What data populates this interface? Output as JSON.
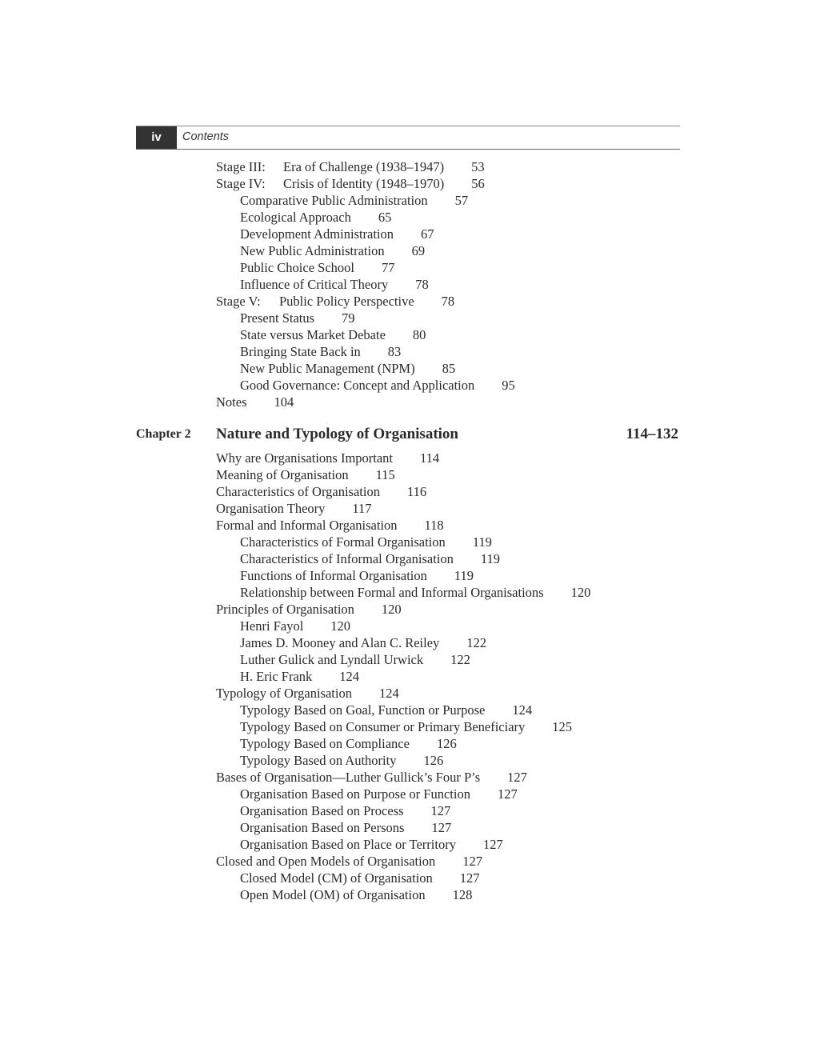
{
  "header": {
    "page_number": "iv",
    "title": "Contents"
  },
  "section1": [
    {
      "label": "Stage III:",
      "text": "Era of Challenge (1938–1947)",
      "page": "53",
      "level": 0
    },
    {
      "label": "Stage IV:",
      "text": "Crisis of Identity (1948–1970)",
      "page": "56",
      "level": 0
    },
    {
      "text": "Comparative Public Administration",
      "page": "57",
      "level": 1
    },
    {
      "text": "Ecological Approach",
      "page": "65",
      "level": 1
    },
    {
      "text": "Development Administration",
      "page": "67",
      "level": 1
    },
    {
      "text": "New Public Administration",
      "page": "69",
      "level": 1
    },
    {
      "text": "Public Choice School",
      "page": "77",
      "level": 1
    },
    {
      "text": "Influence of Critical Theory",
      "page": "78",
      "level": 1
    },
    {
      "label": "Stage V:",
      "text": "Public Policy Perspective",
      "page": "78",
      "level": 0
    },
    {
      "text": "Present Status",
      "page": "79",
      "level": 1
    },
    {
      "text": "State versus Market Debate",
      "page": "80",
      "level": 1
    },
    {
      "text": "Bringing State Back in",
      "page": "83",
      "level": 1
    },
    {
      "text": "New Public Management (NPM)",
      "page": "85",
      "level": 1
    },
    {
      "text": "Good Governance: Concept and Application",
      "page": "95",
      "level": 1
    },
    {
      "text": "Notes",
      "page": "104",
      "level": 0
    }
  ],
  "chapter": {
    "label": "Chapter 2",
    "title": "Nature and Typology of Organisation",
    "pages": "114–132"
  },
  "section2": [
    {
      "text": "Why are Organisations Important",
      "page": "114",
      "level": 0
    },
    {
      "text": "Meaning of Organisation",
      "page": "115",
      "level": 0
    },
    {
      "text": "Characteristics of Organisation",
      "page": "116",
      "level": 0
    },
    {
      "text": "Organisation Theory",
      "page": "117",
      "level": 0
    },
    {
      "text": "Formal and Informal Organisation",
      "page": "118",
      "level": 0
    },
    {
      "text": "Characteristics of Formal Organisation",
      "page": "119",
      "level": 1
    },
    {
      "text": "Characteristics of Informal Organisation",
      "page": "119",
      "level": 1
    },
    {
      "text": "Functions of Informal Organisation",
      "page": "119",
      "level": 1
    },
    {
      "text": "Relationship between Formal and Informal Organisations",
      "page": "120",
      "level": 1
    },
    {
      "text": "Principles of Organisation",
      "page": "120",
      "level": 0
    },
    {
      "text": "Henri Fayol",
      "page": "120",
      "level": 1
    },
    {
      "text": "James D. Mooney and Alan C. Reiley",
      "page": "122",
      "level": 1
    },
    {
      "text": "Luther Gulick and Lyndall Urwick",
      "page": "122",
      "level": 1
    },
    {
      "text": "H. Eric Frank",
      "page": "124",
      "level": 1
    },
    {
      "text": "Typology of Organisation",
      "page": "124",
      "level": 0
    },
    {
      "text": "Typology Based on Goal, Function or Purpose",
      "page": "124",
      "level": 1
    },
    {
      "text": "Typology Based on Consumer or Primary Beneficiary",
      "page": "125",
      "level": 1
    },
    {
      "text": "Typology Based on Compliance",
      "page": "126",
      "level": 1
    },
    {
      "text": "Typology Based on Authority",
      "page": "126",
      "level": 1
    },
    {
      "text": "Bases of Organisation—Luther Gullick’s Four P’s",
      "page": "127",
      "level": 0
    },
    {
      "text": "Organisation Based on Purpose or Function",
      "page": "127",
      "level": 1
    },
    {
      "text": "Organisation Based on Process",
      "page": "127",
      "level": 1
    },
    {
      "text": "Organisation Based on Persons",
      "page": "127",
      "level": 1
    },
    {
      "text": "Organisation Based on Place or Territory",
      "page": "127",
      "level": 1
    },
    {
      "text": "Closed and Open Models of Organisation",
      "page": "127",
      "level": 0
    },
    {
      "text": "Closed Model (CM) of Organisation",
      "page": "127",
      "level": 1
    },
    {
      "text": "Open Model (OM) of Organisation",
      "page": "128",
      "level": 1
    }
  ]
}
